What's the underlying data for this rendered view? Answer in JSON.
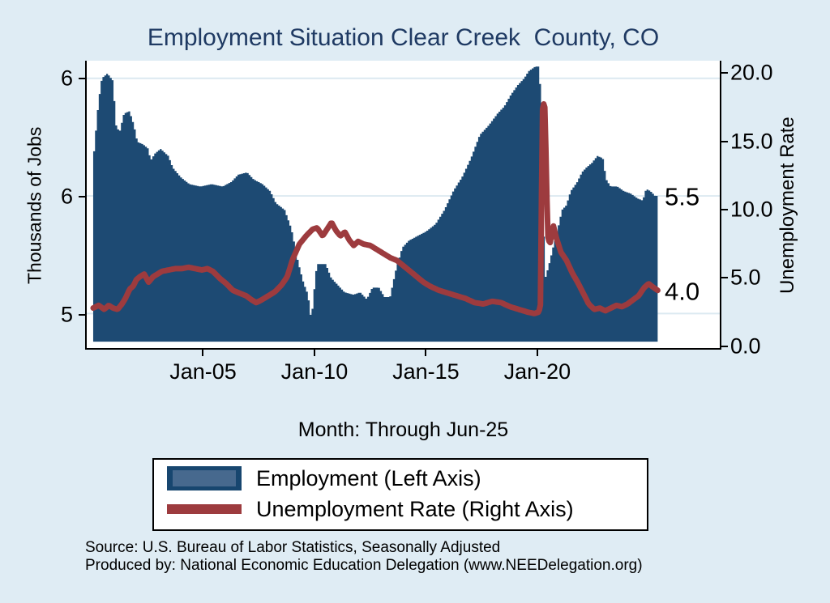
{
  "title": {
    "text": "Employment Situation Clear Creek  County, CO"
  },
  "colors": {
    "background": "#dfecf4",
    "plot_background": "#ffffff",
    "grid": "#dce9f1",
    "area_fill": "#1d4a73",
    "line": "#9d3b3e",
    "title_text": "#1f3a63",
    "axis_text": "#000000",
    "legend_swatch_inner": "#47698e",
    "legend_swatch_border": "#17466f"
  },
  "legend": {
    "items": [
      {
        "label": "Employment (Left Axis)",
        "marker": "area-swatch"
      },
      {
        "label": "Unemployment Rate (Right Axis)",
        "marker": "line-swatch"
      }
    ]
  },
  "footer": {
    "line1": "Source: U.S. Bureau of Labor Statistics, Seasonally Adjusted",
    "line2": "Produced by: National Economic Education Delegation (www.NEEDelegation.org)"
  },
  "chart_data": {
    "type": [
      "area",
      "line"
    ],
    "x_axis": {
      "label": "Month: Through Jun-25",
      "range_years": [
        2000.0,
        2025.46
      ],
      "ticks": [
        {
          "label": "Jan-05",
          "year": 2005
        },
        {
          "label": "Jan-10",
          "year": 2010
        },
        {
          "label": "Jan-15",
          "year": 2015
        },
        {
          "label": "Jan-20",
          "year": 2020
        }
      ]
    },
    "left_axis": {
      "label": "Thousands of Jobs",
      "range": [
        4.853,
        6.075
      ],
      "area_base_value": 4.88,
      "ticks": [
        {
          "label": "6",
          "value": 6.0
        },
        {
          "label": "6",
          "value": 5.5
        },
        {
          "label": "5",
          "value": 5.0
        }
      ]
    },
    "right_axis": {
      "label": "Unemployment Rate",
      "range": [
        -0.24,
        20.89
      ],
      "ticks": [
        {
          "label": "20.0",
          "value": 20
        },
        {
          "label": "15.0",
          "value": 15
        },
        {
          "label": "10.0",
          "value": 10
        },
        {
          "label": "5.0",
          "value": 5
        },
        {
          "label": "0.0",
          "value": 0
        }
      ]
    },
    "annotations": [
      {
        "text": "5.5",
        "axis": "left",
        "value": 5.5
      },
      {
        "text": "4.0",
        "axis": "right",
        "value": 4.0
      }
    ],
    "series": [
      {
        "name": "Employment (Left Axis)",
        "type": "area",
        "axis": "left",
        "units": "thousands of jobs",
        "points": [
          [
            2000.0,
            5.69
          ],
          [
            2000.2,
            5.9
          ],
          [
            2000.35,
            6.0
          ],
          [
            2000.6,
            6.02
          ],
          [
            2000.85,
            5.99
          ],
          [
            2001.0,
            5.8
          ],
          [
            2001.15,
            5.77
          ],
          [
            2001.35,
            5.85
          ],
          [
            2001.6,
            5.86
          ],
          [
            2001.8,
            5.8
          ],
          [
            2001.95,
            5.73
          ],
          [
            2002.2,
            5.72
          ],
          [
            2002.45,
            5.7
          ],
          [
            2002.55,
            5.65
          ],
          [
            2002.75,
            5.68
          ],
          [
            2003.0,
            5.7
          ],
          [
            2003.35,
            5.67
          ],
          [
            2003.55,
            5.62
          ],
          [
            2003.9,
            5.58
          ],
          [
            2004.3,
            5.55
          ],
          [
            2004.8,
            5.54
          ],
          [
            2005.3,
            5.55
          ],
          [
            2005.8,
            5.54
          ],
          [
            2006.2,
            5.56
          ],
          [
            2006.5,
            5.59
          ],
          [
            2006.9,
            5.6
          ],
          [
            2007.2,
            5.57
          ],
          [
            2007.6,
            5.55
          ],
          [
            2007.95,
            5.52
          ],
          [
            2008.2,
            5.47
          ],
          [
            2008.6,
            5.44
          ],
          [
            2008.9,
            5.36
          ],
          [
            2009.2,
            5.22
          ],
          [
            2009.45,
            5.13
          ],
          [
            2009.65,
            5.08
          ],
          [
            2009.8,
            4.97
          ],
          [
            2009.95,
            5.12
          ],
          [
            2010.05,
            5.21
          ],
          [
            2010.45,
            5.21
          ],
          [
            2010.7,
            5.15
          ],
          [
            2011.0,
            5.12
          ],
          [
            2011.3,
            5.09
          ],
          [
            2011.7,
            5.08
          ],
          [
            2012.0,
            5.09
          ],
          [
            2012.3,
            5.06
          ],
          [
            2012.55,
            5.11
          ],
          [
            2012.85,
            5.11
          ],
          [
            2013.1,
            5.07
          ],
          [
            2013.35,
            5.07
          ],
          [
            2013.6,
            5.18
          ],
          [
            2013.9,
            5.28
          ],
          [
            2014.2,
            5.31
          ],
          [
            2014.6,
            5.33
          ],
          [
            2015.0,
            5.35
          ],
          [
            2015.4,
            5.38
          ],
          [
            2015.8,
            5.44
          ],
          [
            2016.2,
            5.52
          ],
          [
            2016.6,
            5.58
          ],
          [
            2017.0,
            5.66
          ],
          [
            2017.4,
            5.76
          ],
          [
            2017.8,
            5.8
          ],
          [
            2018.2,
            5.85
          ],
          [
            2018.5,
            5.88
          ],
          [
            2018.8,
            5.93
          ],
          [
            2019.1,
            5.97
          ],
          [
            2019.4,
            6.0
          ],
          [
            2019.6,
            6.03
          ],
          [
            2019.9,
            6.05
          ],
          [
            2020.1,
            6.05
          ],
          [
            2020.25,
            5.42
          ],
          [
            2020.35,
            5.15
          ],
          [
            2020.5,
            5.2
          ],
          [
            2020.7,
            5.28
          ],
          [
            2020.85,
            5.33
          ],
          [
            2021.1,
            5.44
          ],
          [
            2021.3,
            5.46
          ],
          [
            2021.5,
            5.52
          ],
          [
            2021.8,
            5.56
          ],
          [
            2022.0,
            5.6
          ],
          [
            2022.2,
            5.62
          ],
          [
            2022.45,
            5.64
          ],
          [
            2022.7,
            5.67
          ],
          [
            2022.95,
            5.66
          ],
          [
            2023.1,
            5.57
          ],
          [
            2023.3,
            5.54
          ],
          [
            2023.6,
            5.54
          ],
          [
            2023.9,
            5.52
          ],
          [
            2024.2,
            5.51
          ],
          [
            2024.5,
            5.49
          ],
          [
            2024.75,
            5.48
          ],
          [
            2024.9,
            5.53
          ],
          [
            2025.1,
            5.52
          ],
          [
            2025.3,
            5.5
          ],
          [
            2025.46,
            5.5
          ]
        ]
      },
      {
        "name": "Unemployment Rate (Right Axis)",
        "type": "line",
        "axis": "right",
        "units": "percent",
        "points": [
          [
            2000.0,
            2.7
          ],
          [
            2000.25,
            2.9
          ],
          [
            2000.5,
            2.6
          ],
          [
            2000.7,
            2.9
          ],
          [
            2000.9,
            2.7
          ],
          [
            2001.1,
            2.6
          ],
          [
            2001.3,
            3.0
          ],
          [
            2001.45,
            3.4
          ],
          [
            2001.65,
            4.1
          ],
          [
            2001.8,
            4.3
          ],
          [
            2001.95,
            4.8
          ],
          [
            2002.1,
            5.0
          ],
          [
            2002.3,
            5.2
          ],
          [
            2002.5,
            4.6
          ],
          [
            2002.7,
            5.0
          ],
          [
            2002.9,
            5.2
          ],
          [
            2003.1,
            5.4
          ],
          [
            2003.4,
            5.5
          ],
          [
            2003.7,
            5.6
          ],
          [
            2004.0,
            5.6
          ],
          [
            2004.3,
            5.7
          ],
          [
            2004.6,
            5.6
          ],
          [
            2004.9,
            5.5
          ],
          [
            2005.15,
            5.6
          ],
          [
            2005.4,
            5.4
          ],
          [
            2005.7,
            4.9
          ],
          [
            2006.0,
            4.5
          ],
          [
            2006.3,
            4.0
          ],
          [
            2006.6,
            3.8
          ],
          [
            2006.9,
            3.6
          ],
          [
            2007.15,
            3.3
          ],
          [
            2007.35,
            3.1
          ],
          [
            2007.6,
            3.3
          ],
          [
            2007.9,
            3.6
          ],
          [
            2008.2,
            3.9
          ],
          [
            2008.5,
            4.4
          ],
          [
            2008.75,
            5.0
          ],
          [
            2009.0,
            6.3
          ],
          [
            2009.3,
            7.4
          ],
          [
            2009.6,
            8.0
          ],
          [
            2009.9,
            8.5
          ],
          [
            2010.1,
            8.6
          ],
          [
            2010.35,
            8.0
          ],
          [
            2010.55,
            8.5
          ],
          [
            2010.75,
            9.0
          ],
          [
            2010.95,
            8.4
          ],
          [
            2011.15,
            8.0
          ],
          [
            2011.35,
            8.3
          ],
          [
            2011.55,
            7.7
          ],
          [
            2011.75,
            7.3
          ],
          [
            2011.95,
            7.6
          ],
          [
            2012.2,
            7.4
          ],
          [
            2012.5,
            7.3
          ],
          [
            2012.8,
            7.0
          ],
          [
            2013.1,
            6.7
          ],
          [
            2013.4,
            6.4
          ],
          [
            2013.7,
            6.2
          ],
          [
            2014.0,
            5.8
          ],
          [
            2014.3,
            5.4
          ],
          [
            2014.6,
            5.0
          ],
          [
            2014.9,
            4.6
          ],
          [
            2015.2,
            4.3
          ],
          [
            2015.6,
            4.0
          ],
          [
            2016.0,
            3.8
          ],
          [
            2016.4,
            3.6
          ],
          [
            2016.8,
            3.4
          ],
          [
            2017.2,
            3.1
          ],
          [
            2017.6,
            3.0
          ],
          [
            2018.0,
            3.2
          ],
          [
            2018.4,
            3.1
          ],
          [
            2018.8,
            2.8
          ],
          [
            2019.2,
            2.6
          ],
          [
            2019.6,
            2.4
          ],
          [
            2019.9,
            2.3
          ],
          [
            2020.1,
            2.4
          ],
          [
            2020.18,
            3.0
          ],
          [
            2020.25,
            17.0
          ],
          [
            2020.3,
            17.8
          ],
          [
            2020.38,
            17.4
          ],
          [
            2020.5,
            8.0
          ],
          [
            2020.6,
            7.4
          ],
          [
            2020.75,
            8.8
          ],
          [
            2020.9,
            7.8
          ],
          [
            2021.1,
            6.8
          ],
          [
            2021.35,
            6.2
          ],
          [
            2021.6,
            5.3
          ],
          [
            2021.85,
            4.6
          ],
          [
            2022.1,
            3.8
          ],
          [
            2022.35,
            3.0
          ],
          [
            2022.6,
            2.6
          ],
          [
            2022.85,
            2.7
          ],
          [
            2023.1,
            2.5
          ],
          [
            2023.35,
            2.7
          ],
          [
            2023.6,
            2.9
          ],
          [
            2023.85,
            2.8
          ],
          [
            2024.1,
            3.0
          ],
          [
            2024.35,
            3.3
          ],
          [
            2024.6,
            3.6
          ],
          [
            2024.85,
            4.2
          ],
          [
            2025.05,
            4.5
          ],
          [
            2025.2,
            4.3
          ],
          [
            2025.46,
            4.0
          ]
        ]
      }
    ]
  }
}
